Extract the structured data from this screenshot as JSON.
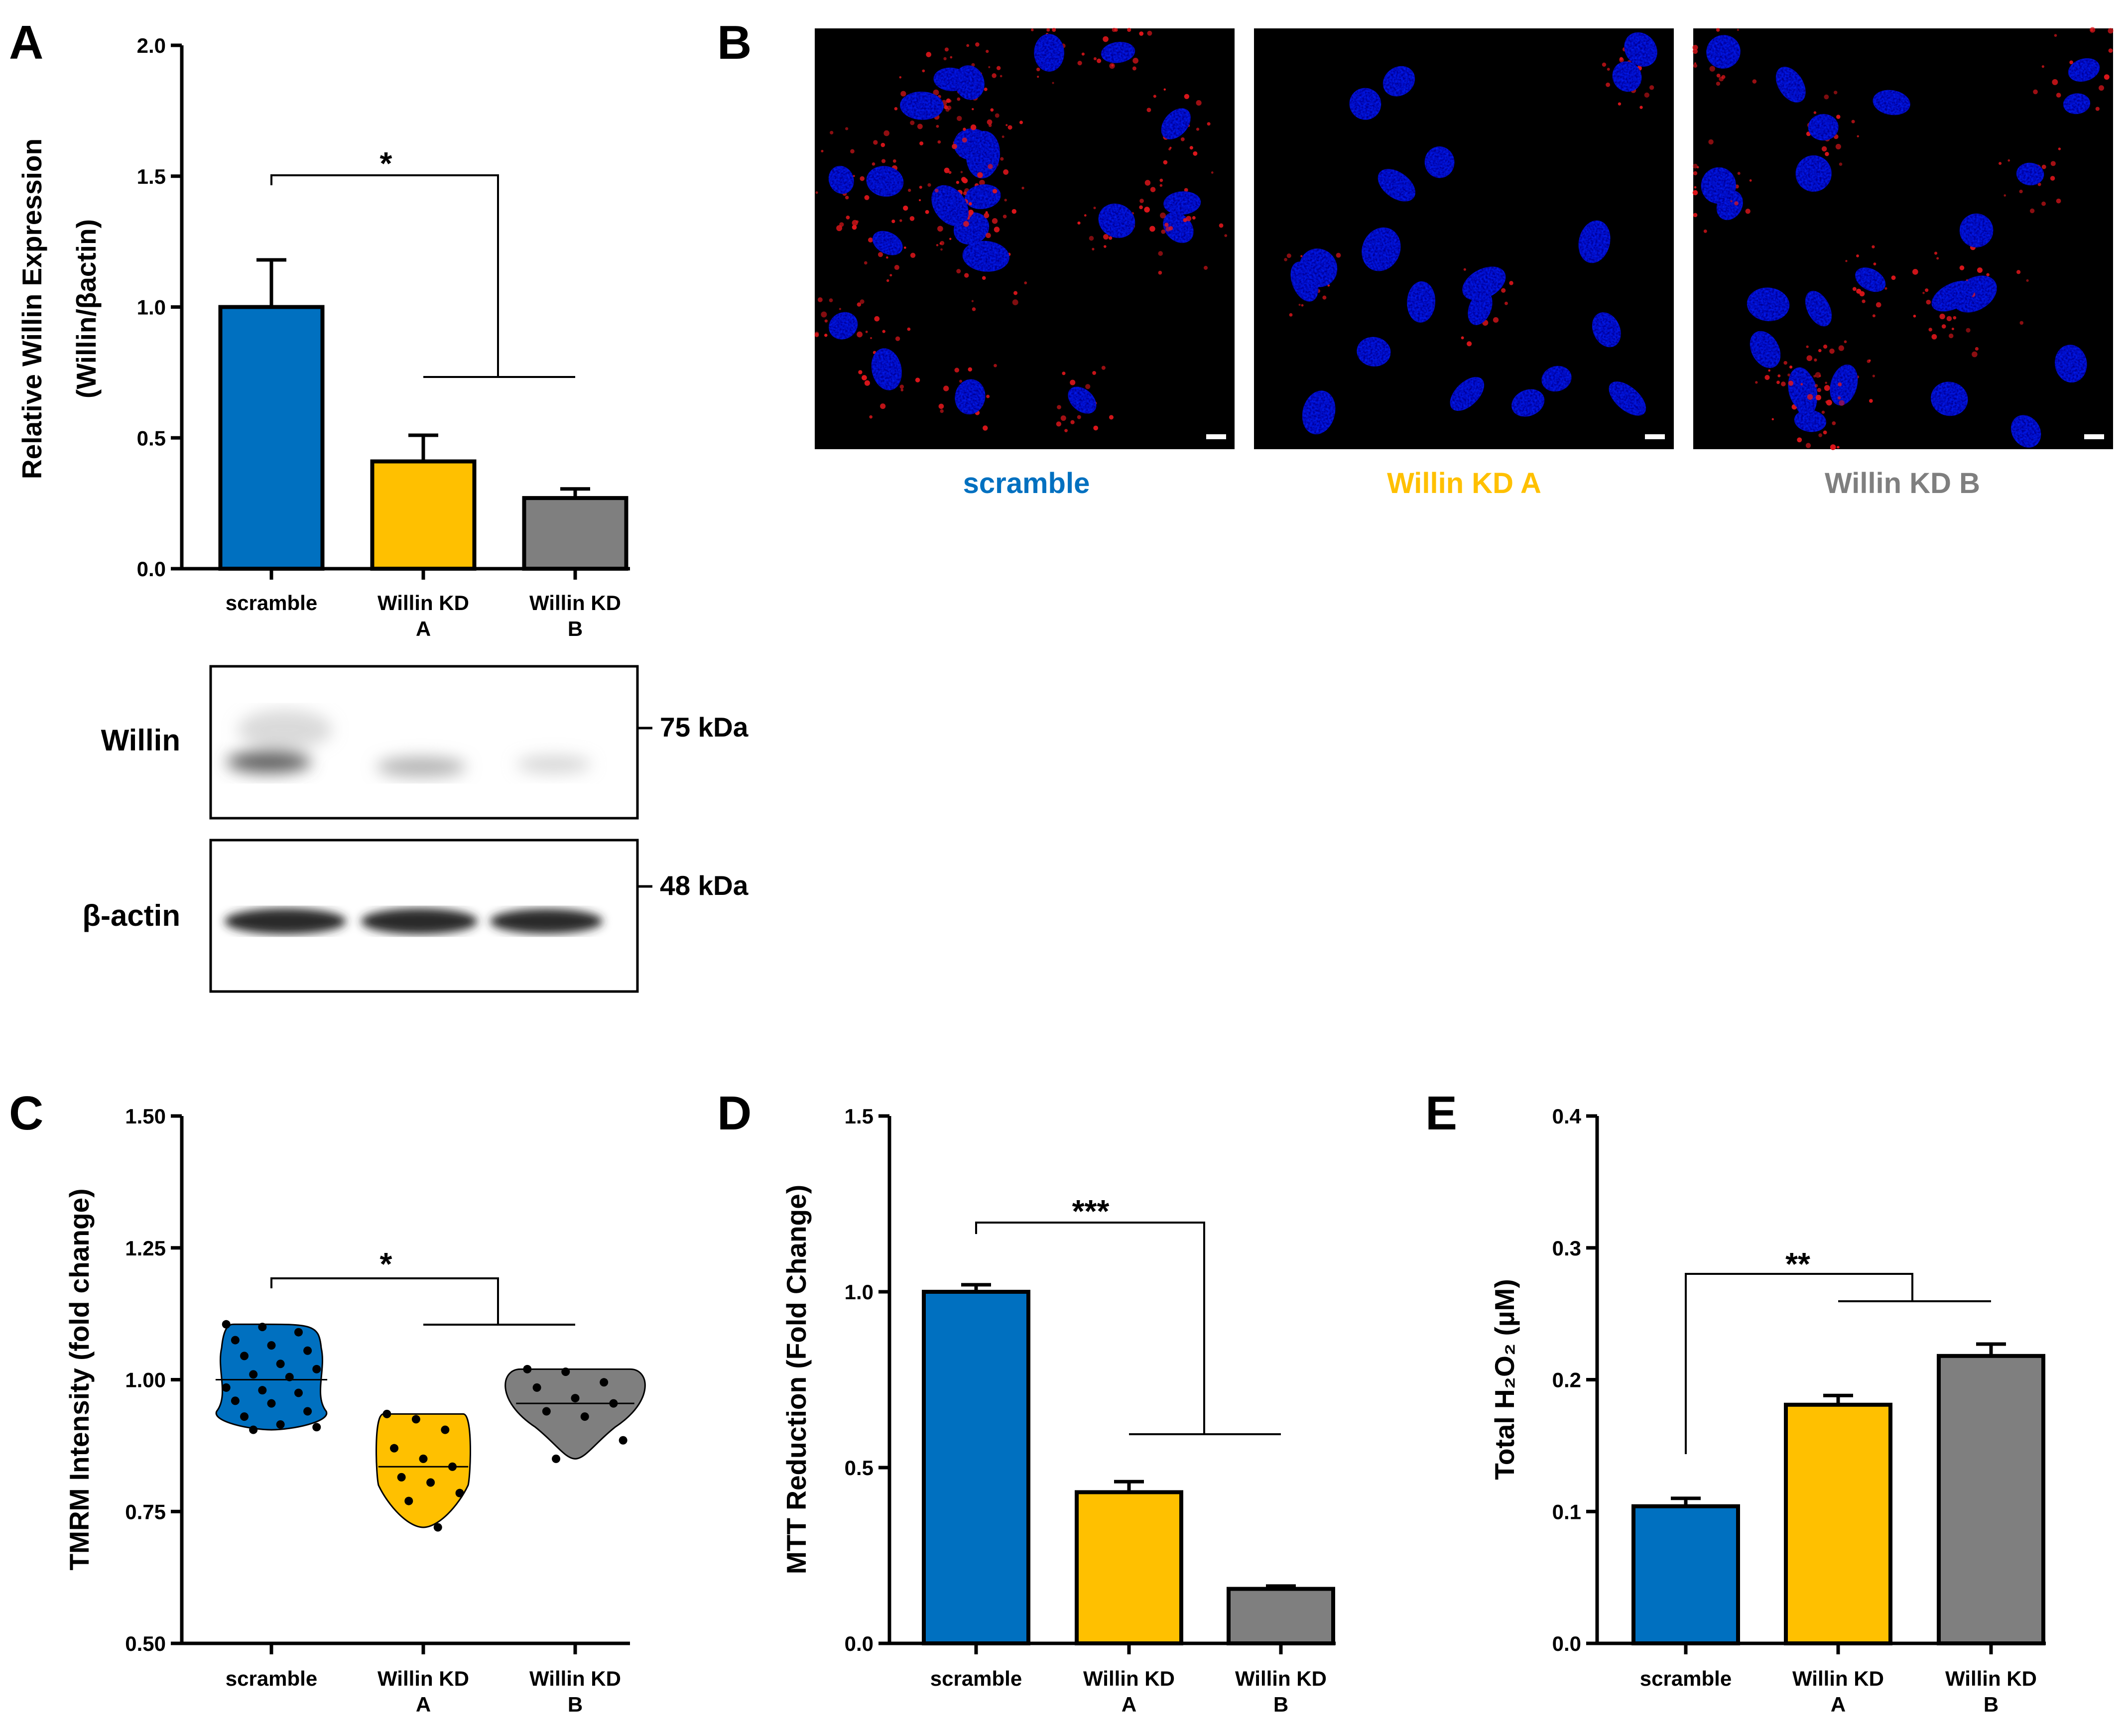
{
  "colors": {
    "scramble": "#0070c0",
    "kd_a": "#ffc000",
    "kd_b": "#7f7f7f",
    "nucleus": "#0a1aee",
    "signal": "#e0161b"
  },
  "panels": {
    "A": "A",
    "B": "B",
    "C": "C",
    "D": "D",
    "E": "E"
  },
  "chart_data": [
    {
      "panel": "A",
      "type": "bar",
      "ylabel": "Relative Willin Expression",
      "ylabel2": "(Willin/βactin)",
      "ylim": [
        0,
        2.0
      ],
      "yticks": [
        "0.0",
        "0.5",
        "1.0",
        "1.5",
        "2.0"
      ],
      "categories": [
        [
          "scramble",
          ""
        ],
        [
          "Willin KD",
          "A"
        ],
        [
          "Willin KD",
          "B"
        ]
      ],
      "values": [
        1.0,
        0.41,
        0.27
      ],
      "errors": [
        0.18,
        0.1,
        0.035
      ],
      "significance": "*"
    },
    {
      "panel": "C",
      "type": "violin",
      "ylabel": "TMRM Intensity (fold change)",
      "ylim": [
        0.5,
        1.5
      ],
      "yticks": [
        "0.50",
        "0.75",
        "1.00",
        "1.25",
        "1.50"
      ],
      "categories": [
        [
          "scramble",
          ""
        ],
        [
          "Willin KD",
          "A"
        ],
        [
          "Willin KD",
          "B"
        ]
      ],
      "medians": [
        1.0,
        0.835,
        0.955
      ],
      "points": [
        [
          1.105,
          1.1,
          1.09,
          1.075,
          1.065,
          1.055,
          1.045,
          1.03,
          1.02,
          1.01,
          1.005,
          0.985,
          0.98,
          0.975,
          0.96,
          0.955,
          0.94,
          0.93,
          0.915,
          0.91,
          0.905
        ],
        [
          0.935,
          0.925,
          0.905,
          0.87,
          0.85,
          0.835,
          0.815,
          0.805,
          0.785,
          0.77,
          0.72
        ],
        [
          1.02,
          1.015,
          0.995,
          0.985,
          0.965,
          0.955,
          0.94,
          0.93,
          0.885,
          0.85
        ]
      ],
      "significance": "*"
    },
    {
      "panel": "D",
      "type": "bar",
      "ylabel": "MTT Reduction (Fold Change)",
      "ylim": [
        0,
        1.5
      ],
      "yticks": [
        "0.0",
        "0.5",
        "1.0",
        "1.5"
      ],
      "categories": [
        [
          "scramble",
          ""
        ],
        [
          "Willin KD",
          "A"
        ],
        [
          "Willin KD",
          "B"
        ]
      ],
      "values": [
        1.0,
        0.43,
        0.155
      ],
      "errors": [
        0.02,
        0.03,
        0.008
      ],
      "significance": "***"
    },
    {
      "panel": "E",
      "type": "bar",
      "ylabel": "Total H₂O₂ (µM)",
      "ylim": [
        0,
        0.4
      ],
      "yticks": [
        "0.0",
        "0.1",
        "0.2",
        "0.3",
        "0.4"
      ],
      "categories": [
        [
          "scramble",
          ""
        ],
        [
          "Willin KD",
          "A"
        ],
        [
          "Willin KD",
          "B"
        ]
      ],
      "values": [
        0.104,
        0.181,
        0.218
      ],
      "errors": [
        0.006,
        0.007,
        0.009
      ],
      "significance": "**"
    }
  ],
  "western_blot": {
    "rows": [
      "Willin",
      "β-actin"
    ],
    "markers": [
      "75 kDa",
      "48 kDa"
    ]
  },
  "microscopy_labels": [
    "scramble",
    "Willin KD A",
    "Willin KD B"
  ]
}
